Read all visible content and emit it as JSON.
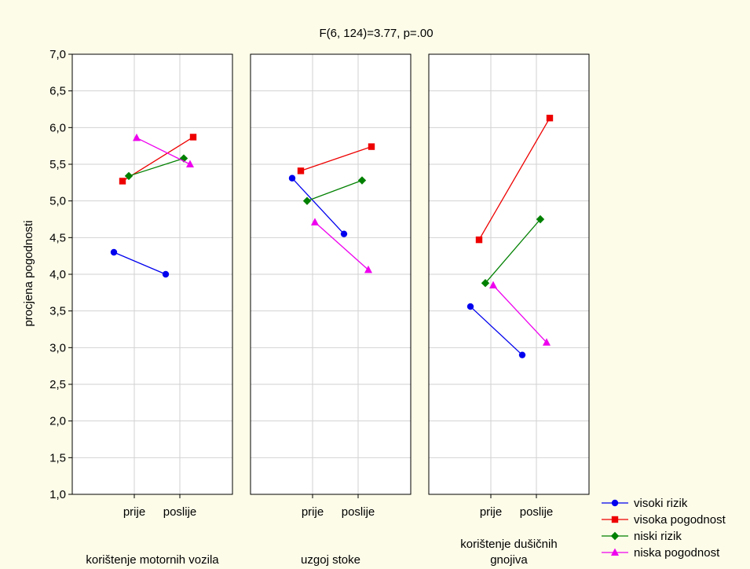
{
  "chart_data": {
    "type": "line",
    "title": "F(6, 124)=3.77, p=.00",
    "ylabel": "procjena pogodnosti",
    "ylim": [
      1.0,
      7.0
    ],
    "yticks": [
      "1,0",
      "1,5",
      "2,0",
      "2,5",
      "3,0",
      "3,5",
      "4,0",
      "4,5",
      "5,0",
      "5,5",
      "6,0",
      "6,5",
      "7,0"
    ],
    "categories": [
      "prije",
      "poslije"
    ],
    "grid": true,
    "legend_position": "bottom-right",
    "series_styles": [
      {
        "name": "visoki rizik",
        "color": "#0000ee",
        "marker": "circle"
      },
      {
        "name": "visoka pogodnost",
        "color": "#ee0000",
        "marker": "square"
      },
      {
        "name": "niski rizik",
        "color": "#008000",
        "marker": "diamond"
      },
      {
        "name": "niska pogodnost",
        "color": "#ee00ee",
        "marker": "triangle"
      }
    ],
    "panels": [
      {
        "label": [
          "korištenje motornih vozila"
        ],
        "series": [
          {
            "name": "visoki rizik",
            "values": [
              4.3,
              4.0
            ]
          },
          {
            "name": "visoka pogodnost",
            "values": [
              5.27,
              5.87
            ]
          },
          {
            "name": "niski rizik",
            "values": [
              5.34,
              5.58
            ]
          },
          {
            "name": "niska pogodnost",
            "values": [
              5.86,
              5.5
            ]
          }
        ]
      },
      {
        "label": [
          "uzgoj stoke"
        ],
        "series": [
          {
            "name": "visoki rizik",
            "values": [
              5.31,
              4.55
            ]
          },
          {
            "name": "visoka pogodnost",
            "values": [
              5.41,
              5.74
            ]
          },
          {
            "name": "niski rizik",
            "values": [
              5.0,
              5.28
            ]
          },
          {
            "name": "niska pogodnost",
            "values": [
              4.71,
              4.06
            ]
          }
        ]
      },
      {
        "label": [
          "korištenje dušičnih",
          "gnojiva"
        ],
        "series": [
          {
            "name": "visoki rizik",
            "values": [
              3.56,
              2.9
            ]
          },
          {
            "name": "visoka pogodnost",
            "values": [
              4.47,
              6.13
            ]
          },
          {
            "name": "niski rizik",
            "values": [
              3.88,
              4.75
            ]
          },
          {
            "name": "niska pogodnost",
            "values": [
              3.85,
              3.07
            ]
          }
        ]
      }
    ]
  }
}
